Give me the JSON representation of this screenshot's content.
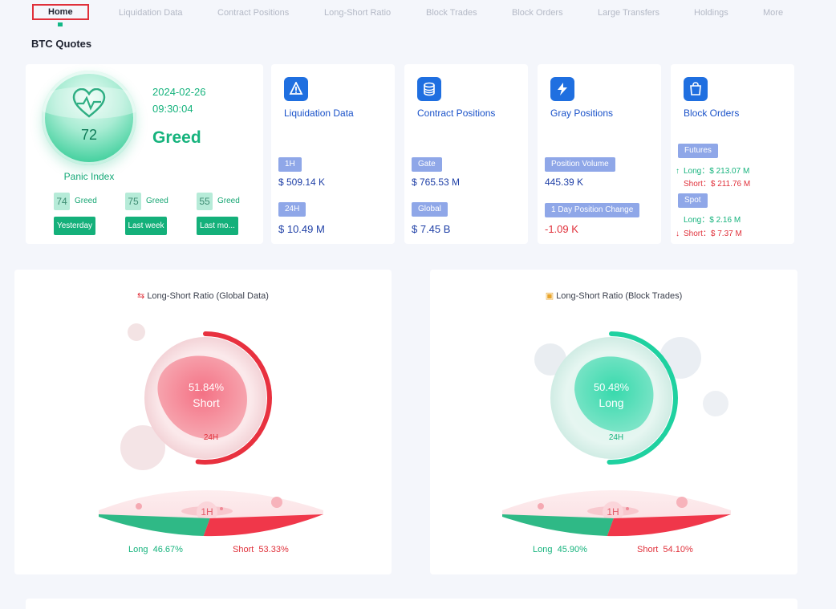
{
  "nav": {
    "items": [
      "Home",
      "Liquidation Data",
      "Contract Positions",
      "Long-Short Ratio",
      "Block Trades",
      "Block Orders",
      "Large Transfers",
      "Holdings",
      "More"
    ],
    "active_index": 0,
    "accent": "#e0303a"
  },
  "section_title": "BTC Quotes",
  "fear_greed": {
    "value": "72",
    "label": "Panic Index",
    "date": "2024-02-26",
    "time": "09:30:04",
    "state": "Greed",
    "history": [
      {
        "value": "74",
        "state": "Greed",
        "period": "Yesterday"
      },
      {
        "value": "75",
        "state": "Greed",
        "period": "Last week"
      },
      {
        "value": "55",
        "state": "Greed",
        "period": "Last mo..."
      }
    ],
    "color": "#16b37d"
  },
  "liquidation": {
    "title": "Liquidation Data",
    "icon": "liquidation-icon",
    "tag1": "1H",
    "value1": "$ 509.14 K",
    "tag2": "24H",
    "value2": "$ 10.49 M"
  },
  "contract_positions": {
    "title": "Contract Positions",
    "icon": "coins-stack-icon",
    "tag1": "Gate",
    "value1": "$ 765.53 M",
    "tag2": "Global",
    "value2": "$ 7.45 B"
  },
  "gray_positions": {
    "title": "Gray Positions",
    "icon": "gray-logo-icon",
    "tag1": "Position Volume",
    "value1": "445.39 K",
    "tag2": "1 Day Position Change",
    "value2": "-1.09 K"
  },
  "block_orders": {
    "title": "Block Orders",
    "icon": "block-orders-icon",
    "futures_tag": "Futures",
    "futures_long_label": "Long：",
    "futures_long": "$ 213.07 M",
    "futures_short_label": "Short：",
    "futures_short": "$ 211.76 M",
    "spot_tag": "Spot",
    "spot_long_label": "Long：",
    "spot_long": "$ 2.16 M",
    "spot_short_label": "Short：",
    "spot_short": "$ 7.37 M"
  },
  "ratio_global": {
    "title": "Long-Short Ratio (Global Data)",
    "icon": "ratio-icon",
    "percent": "51.84%",
    "side": "Short",
    "period": "24H",
    "ring_fraction": 0.5184,
    "hour_label": "1H",
    "long_label": "Long",
    "long_value": "46.67%",
    "long_fraction": 0.4667,
    "short_label": "Short",
    "short_value": "53.33%",
    "color": "#e8313f"
  },
  "ratio_block": {
    "title": "Long-Short Ratio (Block Trades)",
    "icon": "block-trades-icon",
    "percent": "50.48%",
    "side": "Long",
    "period": "24H",
    "ring_fraction": 0.5048,
    "hour_label": "1H",
    "long_label": "Long",
    "long_value": "45.90%",
    "long_fraction": 0.459,
    "short_label": "Short",
    "short_value": "54.10%",
    "color": "#1fd1a0"
  }
}
